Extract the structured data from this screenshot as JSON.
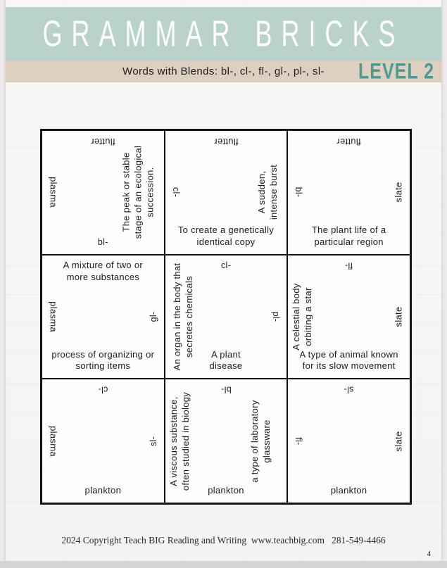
{
  "header": {
    "title": "GRAMMAR BRICKS"
  },
  "subheader": {
    "subtitle": "Words with Blends: bl-, cl-, fl-, gl-, pl-, sl-",
    "level_label": "LEVEL 2"
  },
  "colors": {
    "header_bg": "#b9d2cb",
    "band_bg": "#ddd0c0",
    "level_text": "#4d9a91",
    "grid_line": "#141414"
  },
  "grid": {
    "cells": [
      {
        "top": "flutter",
        "left": "plasma",
        "right": "The peak or stable\nstage of an ecological\nsuccession.",
        "bottom": "bl-"
      },
      {
        "top": "flutter",
        "left": "cl-",
        "right": "A sudden,\nintense burst",
        "bottom": "To create a genetically\nidentical copy"
      },
      {
        "top": "flutter",
        "left": "bl-",
        "right": "slate",
        "bottom": "The plant life of a\nparticular region"
      },
      {
        "top": "A mixture of two or\nmore substances",
        "left": "plasma",
        "right": "gl-",
        "bottom": "process of organizing or\nsorting items"
      },
      {
        "top": "cl-",
        "left": "An organ in the body that\nsecretes chemicals",
        "right": "pl-",
        "bottom": "A plant\ndisease"
      },
      {
        "top": "fl-",
        "left": "A celestial body\norbiting a star",
        "right": "slate",
        "bottom": "A type of animal known\nfor its slow movement"
      },
      {
        "top": "cl-",
        "left": "plasma",
        "right": "sl-",
        "bottom": "plankton"
      },
      {
        "top": "bl-",
        "left": "A viscous substance,\noften studied in biology",
        "right": "a type of laboratory\nglassware",
        "bottom": "plankton"
      },
      {
        "top": "sl-",
        "left": "fl-",
        "right": "slate",
        "bottom": "plankton"
      }
    ]
  },
  "footer": {
    "copyright": "2024 Copyright Teach BIG Reading and Writing  www.teachbig.com   281-549-4466",
    "page_number": "4"
  }
}
